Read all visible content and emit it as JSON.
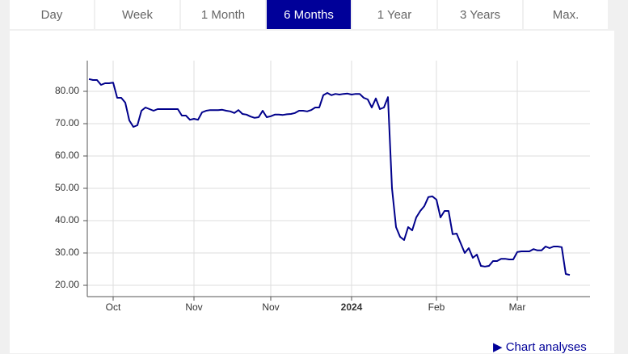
{
  "tabs": [
    "Day",
    "Week",
    "1 Month",
    "6 Months",
    "1 Year",
    "3 Years",
    "Max."
  ],
  "active_tab": 3,
  "link": "Chart analyses",
  "chart_data": {
    "type": "line",
    "categories": [
      null,
      null,
      null,
      null,
      null,
      null,
      "Oct",
      null,
      null,
      null,
      null,
      null,
      null,
      null,
      null,
      null,
      null,
      null,
      null,
      null,
      null,
      null,
      null,
      null,
      null,
      null,
      "Nov",
      null,
      null,
      null,
      null,
      null,
      null,
      null,
      null,
      null,
      null,
      null,
      null,
      null,
      null,
      null,
      null,
      null,
      null,
      "Nov",
      null,
      null,
      null,
      null,
      null,
      null,
      null,
      null,
      null,
      null,
      null,
      null,
      null,
      null,
      null,
      null,
      null,
      null,
      null,
      "2024",
      null,
      null,
      null,
      null,
      null,
      null,
      null,
      null,
      null,
      null,
      null,
      null,
      null,
      null,
      null,
      null,
      null,
      null,
      null,
      null,
      "Feb",
      null,
      null,
      null,
      null,
      null,
      null,
      null,
      null,
      null,
      null,
      null,
      null,
      null,
      null,
      null,
      null,
      null,
      null,
      null,
      "Mar",
      null,
      null,
      null,
      null,
      null,
      null,
      null,
      null,
      null,
      null,
      null,
      null,
      null
    ],
    "series": [
      {
        "color": "#00008b",
        "values": [
          83.8,
          83.5,
          83.5,
          82,
          82.5,
          82.5,
          82.7,
          78,
          78,
          76.5,
          71,
          69,
          69.5,
          74,
          75,
          74.5,
          74,
          74.5,
          74.5,
          74.5,
          74.5,
          74.5,
          74.5,
          72.5,
          72.5,
          71.2,
          71.5,
          71.2,
          73.5,
          74,
          74.2,
          74.2,
          74.2,
          74.3,
          74,
          73.8,
          73.3,
          74.2,
          73,
          72.8,
          72.2,
          71.8,
          72,
          74,
          72,
          72.3,
          72.8,
          72.8,
          72.7,
          72.9,
          73,
          73.3,
          74,
          74,
          73.8,
          74.2,
          75,
          75,
          78.8,
          79.5,
          78.8,
          79.2,
          79,
          79.2,
          79.3,
          79,
          79.2,
          79.2,
          78,
          77.5,
          75,
          77.8,
          74.5,
          75,
          78.2,
          50,
          38,
          35,
          34,
          38,
          37,
          41,
          43,
          44.5,
          47.3,
          47.5,
          46.5,
          41,
          43,
          43,
          35.8,
          36,
          33,
          30,
          31.5,
          28.5,
          29.5,
          26,
          25.8,
          26,
          27.5,
          27.5,
          28.2,
          28.2,
          28,
          28,
          30.3,
          30.5,
          30.5,
          30.5,
          31.2,
          30.8,
          30.8,
          32,
          31.5,
          32,
          32,
          31.8,
          23.5,
          23.2
        ]
      }
    ],
    "ylim": [
      16.5,
      89.5
    ],
    "yticks": [
      {
        "value": 20,
        "label": "20.00"
      },
      {
        "value": 30,
        "label": "30.00"
      },
      {
        "value": 40,
        "label": "40.00"
      },
      {
        "value": 50,
        "label": "50.00"
      },
      {
        "value": 60,
        "label": "60.00"
      },
      {
        "value": 70,
        "label": "70.00"
      },
      {
        "value": 80,
        "label": "80.00"
      }
    ],
    "grid": true
  }
}
